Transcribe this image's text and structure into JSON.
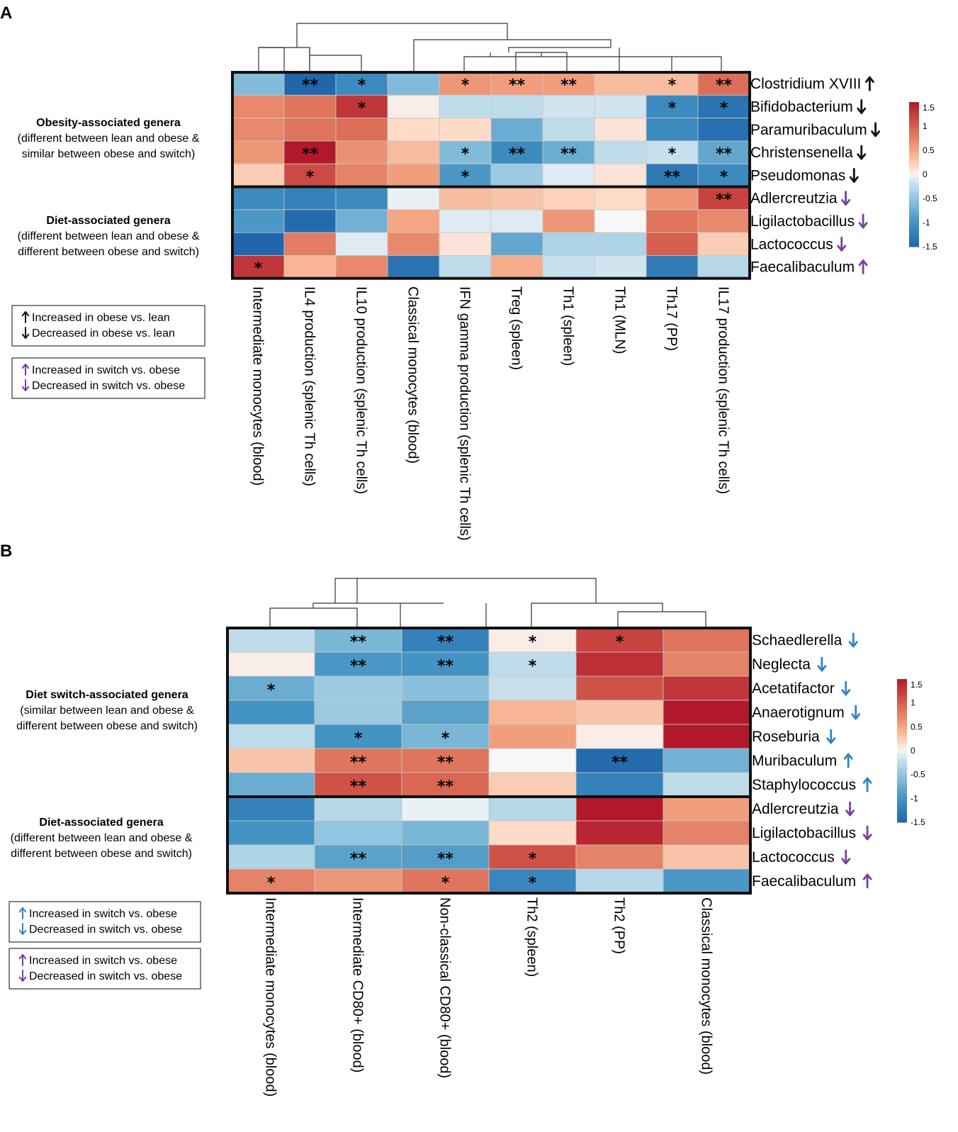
{
  "colors": {
    "black_arrow": "#111111",
    "purple_arrow": "#7b3f9e",
    "blue_arrow": "#2f85c6",
    "scale_low": "#2166ac",
    "scale_mid": "#f7f7f7",
    "scale_high": "#b2182b"
  },
  "chart_data": [
    {
      "type": "heatmap",
      "panel": "A",
      "columns": [
        "Intermediate monocytes (blood)",
        "IL4 production (splenic Th cells)",
        "IL10 production (splenic Th cells)",
        "Classical monocytes (blood)",
        "IFN gamma production (splenic Th cells)",
        "Treg (spleen)",
        "Th1 (spleen)",
        "Th1 (MLN)",
        "Th17 (PP)",
        "IL17 production (splenic Th cells)"
      ],
      "rows": [
        "Clostridium XVIII",
        "Bifidobacterium",
        "Paramuribaculum",
        "Christensenella",
        "Pseudomonas",
        "Adlercreutzia",
        "Ligilactobacillus",
        "Lactococcus",
        "Faecalibaculum"
      ],
      "row_arrows": [
        "up-black",
        "down-black",
        "down-black",
        "down-black",
        "down-black",
        "down-purple",
        "down-purple",
        "down-purple",
        "up-purple"
      ],
      "values": [
        [
          -0.6,
          -1.5,
          -1.1,
          -0.6,
          0.6,
          0.55,
          0.55,
          0.35,
          0.35,
          0.9
        ],
        [
          0.7,
          0.85,
          1.3,
          0.05,
          -0.25,
          -0.25,
          -0.15,
          -0.15,
          -1.1,
          -1.35
        ],
        [
          0.7,
          0.85,
          0.9,
          0.15,
          0.15,
          -0.75,
          -0.25,
          0.1,
          -1.1,
          -1.4
        ],
        [
          0.6,
          1.6,
          0.65,
          0.35,
          -0.6,
          -1.1,
          -0.75,
          -0.25,
          -0.2,
          -0.8
        ],
        [
          0.25,
          1.15,
          0.75,
          0.55,
          -0.95,
          -0.45,
          -0.1,
          0.1,
          -1.3,
          -1.1
        ],
        [
          -1.1,
          -1.2,
          -1.1,
          -0.05,
          0.35,
          0.3,
          0.2,
          0.15,
          0.6,
          1.2
        ],
        [
          -0.95,
          -1.45,
          -0.7,
          0.5,
          -0.1,
          -0.1,
          0.6,
          0.0,
          0.85,
          0.7
        ],
        [
          -1.5,
          0.8,
          -0.1,
          0.7,
          0.1,
          -0.8,
          -0.35,
          -0.35,
          1.0,
          0.25
        ],
        [
          1.3,
          0.4,
          0.7,
          -1.35,
          -0.25,
          0.45,
          -0.2,
          -0.15,
          -1.25,
          -0.3
        ]
      ],
      "significance": [
        [
          "",
          "**",
          "*",
          "",
          "*",
          "**",
          "**",
          "",
          "*",
          "**"
        ],
        [
          "",
          "",
          "*",
          "",
          "",
          "",
          "",
          "",
          "*",
          "*"
        ],
        [
          "",
          "",
          "",
          "",
          "",
          "",
          "",
          "",
          "",
          ""
        ],
        [
          "",
          "**",
          "",
          "",
          "*",
          "**",
          "**",
          "",
          "*",
          "**"
        ],
        [
          "",
          "*",
          "",
          "",
          "*",
          "",
          "",
          "",
          "**",
          "*"
        ],
        [
          "",
          "",
          "",
          "",
          "",
          "",
          "",
          "",
          "",
          "**"
        ],
        [
          "",
          "",
          "",
          "",
          "",
          "",
          "",
          "",
          "",
          ""
        ],
        [
          "",
          "",
          "",
          "",
          "",
          "",
          "",
          "",
          "",
          ""
        ],
        [
          "*",
          "",
          "",
          "",
          "",
          "",
          "",
          "",
          "",
          ""
        ]
      ],
      "row_groups": [
        {
          "title": "Obesity-associated genera",
          "lines": [
            "(different between lean and obese &",
            "similar between obese and switch)"
          ]
        },
        {
          "title": "Diet-associated genera",
          "lines": [
            "(different between lean and obese &",
            "different between obese and switch)"
          ]
        }
      ],
      "legend_boxes": [
        {
          "lines": [
            "Increased in obese vs. lean",
            "Decreased in obese vs. lean"
          ],
          "arrow_color": "black"
        },
        {
          "lines": [
            "Increased in switch vs. obese",
            "Decreased in switch vs. obese"
          ],
          "arrow_color": "purple"
        }
      ],
      "color_scale_ticks": [
        "1.5",
        "1",
        "0.5",
        "0",
        "-0.5",
        "-1",
        "-1.5"
      ],
      "color_range": [
        -1.5,
        1.5
      ]
    },
    {
      "type": "heatmap",
      "panel": "B",
      "columns": [
        "Intermediate monocytes (blood)",
        "Intermediate CD80+ (blood)",
        "Non-classical CD80+ (blood)",
        "Th2 (spleen)",
        "Th2 (PP)",
        "Classical monocytes (blood)"
      ],
      "rows": [
        "Schaedlerella",
        "Neglecta",
        "Acetatifactor",
        "Anaerotignum",
        "Roseburia",
        "Muribaculum",
        "Staphylococcus",
        "Adlercreutzia",
        "Ligilactobacillus",
        "Lactococcus",
        "Faecalibaculum"
      ],
      "row_arrows": [
        "down-blue",
        "down-blue",
        "down-blue",
        "down-blue",
        "down-blue",
        "up-blue",
        "up-blue",
        "down-purple",
        "down-purple",
        "down-purple",
        "up-purple"
      ],
      "values": [
        [
          -0.25,
          -0.65,
          -1.2,
          0.05,
          1.2,
          0.85
        ],
        [
          0.05,
          -0.95,
          -1.0,
          -0.25,
          1.35,
          0.75
        ],
        [
          -0.75,
          -0.45,
          -0.55,
          -0.2,
          1.1,
          1.3
        ],
        [
          -1.0,
          -0.45,
          -0.85,
          0.4,
          0.3,
          1.6
        ],
        [
          -0.25,
          -1.0,
          -0.65,
          0.55,
          0.05,
          1.6
        ],
        [
          0.3,
          0.85,
          0.85,
          0.0,
          -1.45,
          -0.7
        ],
        [
          -0.75,
          1.1,
          0.95,
          0.25,
          -1.2,
          -0.25
        ],
        [
          -1.2,
          -0.3,
          -0.05,
          -0.3,
          1.55,
          0.55
        ],
        [
          -1.0,
          -0.5,
          -0.65,
          0.15,
          1.4,
          0.75
        ],
        [
          -0.35,
          -0.85,
          -0.9,
          1.1,
          0.75,
          0.3
        ],
        [
          0.75,
          0.6,
          0.85,
          -1.15,
          -0.3,
          -0.95
        ]
      ],
      "significance": [
        [
          "",
          "**",
          "**",
          "*",
          "*",
          ""
        ],
        [
          "",
          "**",
          "**",
          "*",
          "",
          ""
        ],
        [
          "*",
          "",
          "",
          "",
          "",
          ""
        ],
        [
          "",
          "",
          "",
          "",
          "",
          ""
        ],
        [
          "",
          "*",
          "*",
          "",
          "",
          ""
        ],
        [
          "",
          "**",
          "**",
          "",
          "**",
          ""
        ],
        [
          "",
          "**",
          "**",
          "",
          "",
          ""
        ],
        [
          "",
          "",
          "",
          "",
          "",
          ""
        ],
        [
          "",
          "",
          "",
          "",
          "",
          ""
        ],
        [
          "",
          "**",
          "**",
          "*",
          "",
          ""
        ],
        [
          "*",
          "",
          "*",
          "*",
          "",
          ""
        ]
      ],
      "row_groups": [
        {
          "title": "Diet switch-associated genera",
          "lines": [
            "(similar between lean and obese &",
            "different between obese and switch)"
          ]
        },
        {
          "title": "Diet-associated genera",
          "lines": [
            "(different between lean and obese &",
            "different between obese and switch)"
          ]
        }
      ],
      "legend_boxes": [
        {
          "lines": [
            "Increased in switch vs. obese",
            "Decreased in switch vs. obese"
          ],
          "arrow_color": "blue"
        },
        {
          "lines": [
            "Increased in switch vs. obese",
            "Decreased in switch vs. obese"
          ],
          "arrow_color": "purple"
        }
      ],
      "color_scale_ticks": [
        "1.5",
        "1",
        "0.5",
        "0",
        "-0.5",
        "-1",
        "-1.5"
      ],
      "color_range": [
        -1.5,
        1.5
      ]
    }
  ]
}
